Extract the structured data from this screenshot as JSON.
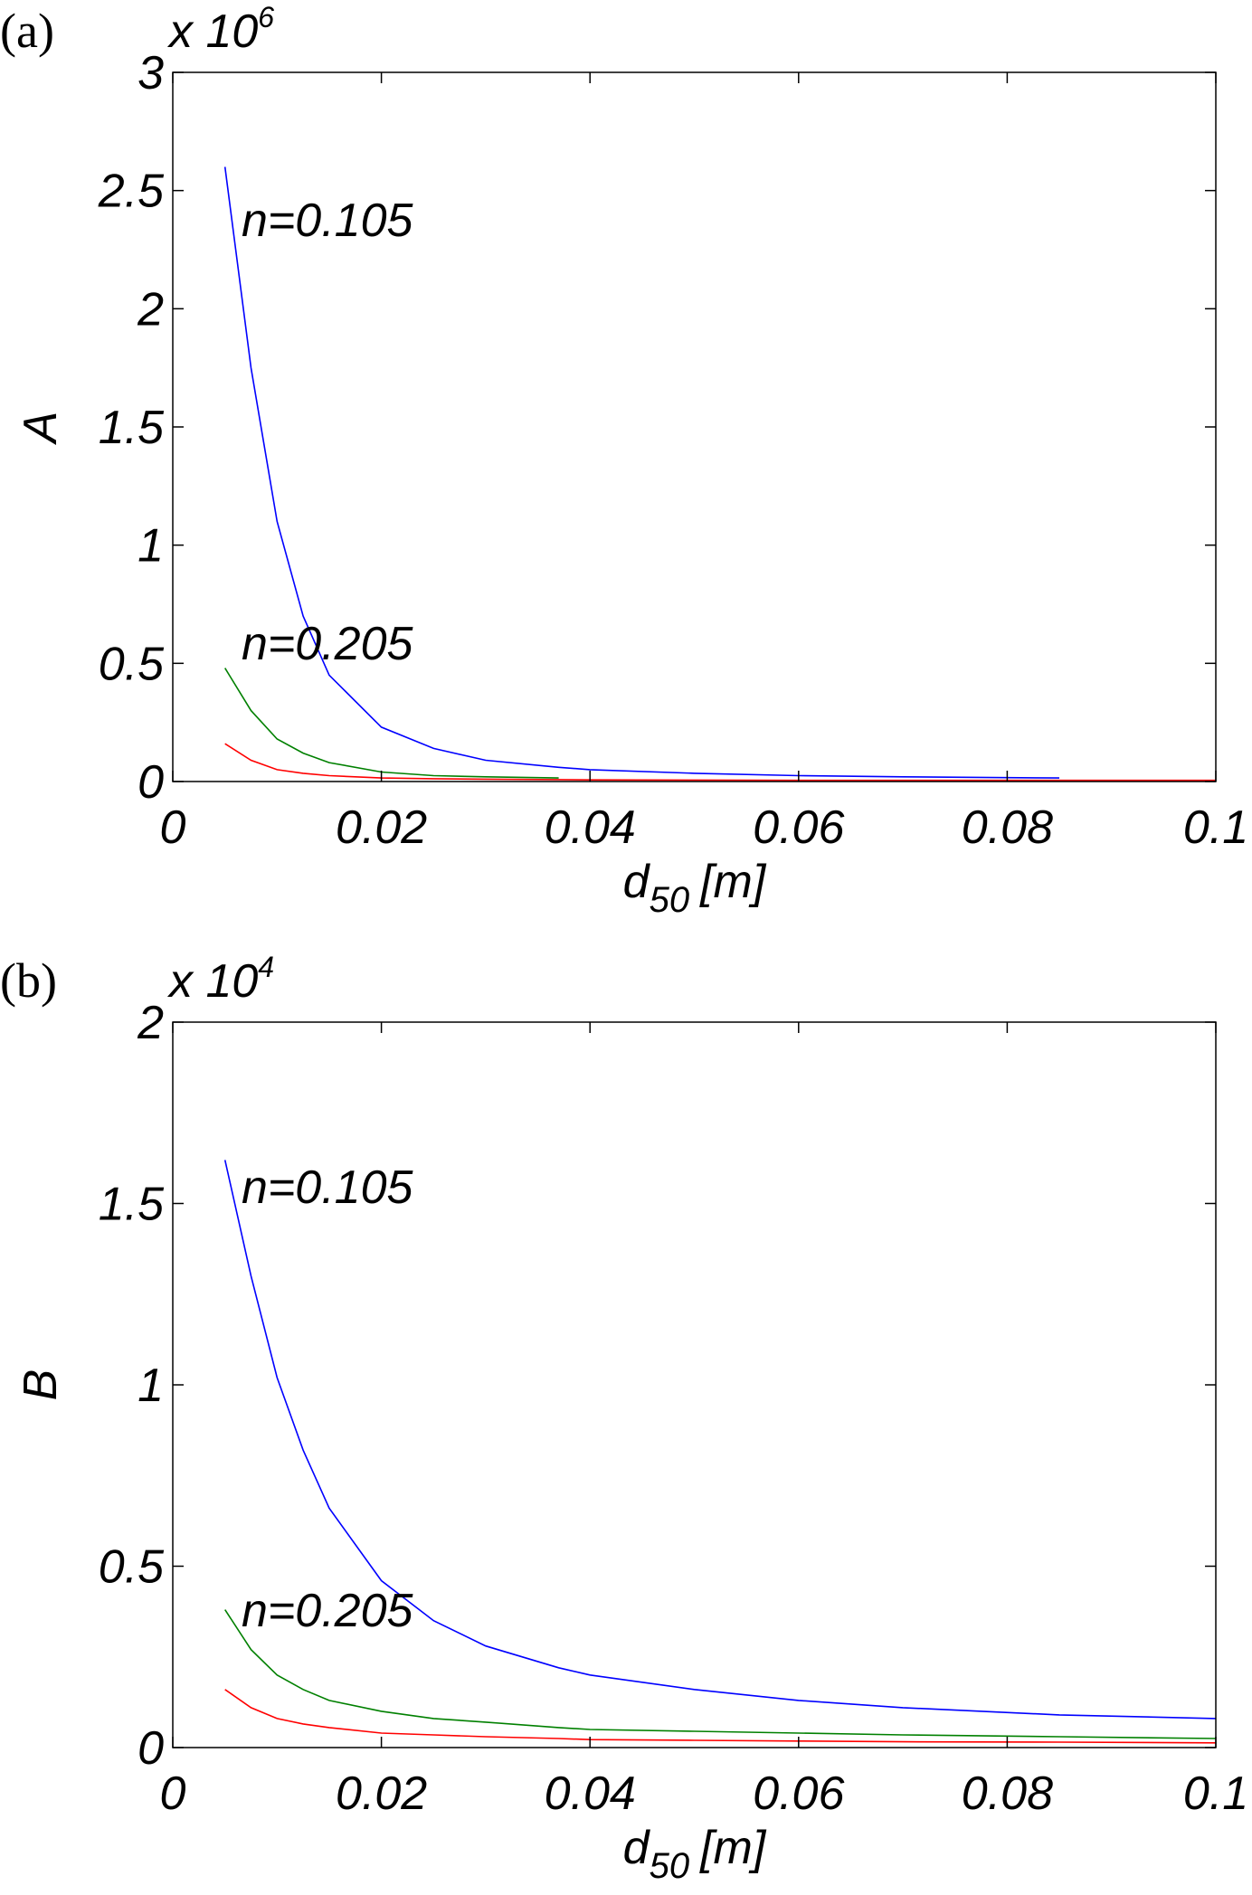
{
  "chart_data": [
    {
      "type": "line",
      "panel_label": "(a)",
      "scale_label": "x 10",
      "scale_exponent": "6",
      "ylabel": "A",
      "xlabel": "d",
      "xlabel_sub": "50",
      "xlabel_unit": "[m]",
      "annotations": [
        "n=0.105",
        "n=0.205"
      ],
      "x": [
        0.005,
        0.0075,
        0.01,
        0.0125,
        0.015,
        0.02,
        0.025,
        0.03,
        0.037,
        0.04,
        0.05,
        0.06,
        0.07,
        0.085,
        0.1
      ],
      "series": [
        {
          "color": "#0000ff",
          "values": [
            2.6,
            1.75,
            1.1,
            0.7,
            0.45,
            0.23,
            0.14,
            0.09,
            0.06,
            0.05,
            0.035,
            0.025,
            0.02,
            0.015,
            null
          ]
        },
        {
          "color": "#008000",
          "values": [
            0.48,
            0.3,
            0.18,
            0.12,
            0.08,
            0.04,
            0.025,
            0.02,
            0.015,
            null,
            null,
            null,
            null,
            null,
            null
          ]
        },
        {
          "color": "#ff0000",
          "values": [
            0.16,
            0.09,
            0.05,
            0.035,
            0.025,
            0.015,
            0.012,
            0.01,
            0.008,
            0.007,
            0.006,
            0.005,
            0.005,
            0.005,
            0.005
          ]
        }
      ],
      "xlim": [
        0,
        0.1
      ],
      "xticks": [
        0,
        0.02,
        0.04,
        0.06,
        0.08,
        0.1
      ],
      "ylim": [
        0,
        3
      ],
      "yticks": [
        0,
        0.5,
        1,
        1.5,
        2,
        2.5,
        3
      ]
    },
    {
      "type": "line",
      "panel_label": "(b)",
      "scale_label": "x 10",
      "scale_exponent": "4",
      "ylabel": "B",
      "xlabel": "d",
      "xlabel_sub": "50",
      "xlabel_unit": "[m]",
      "annotations": [
        "n=0.105",
        "n=0.205"
      ],
      "x": [
        0.005,
        0.0075,
        0.01,
        0.0125,
        0.015,
        0.02,
        0.025,
        0.03,
        0.037,
        0.04,
        0.05,
        0.06,
        0.07,
        0.085,
        0.1
      ],
      "series": [
        {
          "color": "#0000ff",
          "values": [
            1.62,
            1.3,
            1.02,
            0.82,
            0.66,
            0.46,
            0.35,
            0.28,
            0.22,
            0.2,
            0.16,
            0.13,
            0.11,
            0.09,
            0.08
          ]
        },
        {
          "color": "#008000",
          "values": [
            0.38,
            0.27,
            0.2,
            0.16,
            0.13,
            0.1,
            0.08,
            0.07,
            0.055,
            0.05,
            0.045,
            0.04,
            0.035,
            0.03,
            0.025
          ]
        },
        {
          "color": "#ff0000",
          "values": [
            0.16,
            0.11,
            0.08,
            0.065,
            0.055,
            0.04,
            0.035,
            0.03,
            0.025,
            0.022,
            0.02,
            0.018,
            0.016,
            0.015,
            0.013
          ]
        }
      ],
      "xlim": [
        0,
        0.1
      ],
      "xticks": [
        0,
        0.02,
        0.04,
        0.06,
        0.08,
        0.1
      ],
      "ylim": [
        0,
        2
      ],
      "yticks": [
        0,
        0.5,
        1,
        1.5,
        2
      ]
    }
  ]
}
